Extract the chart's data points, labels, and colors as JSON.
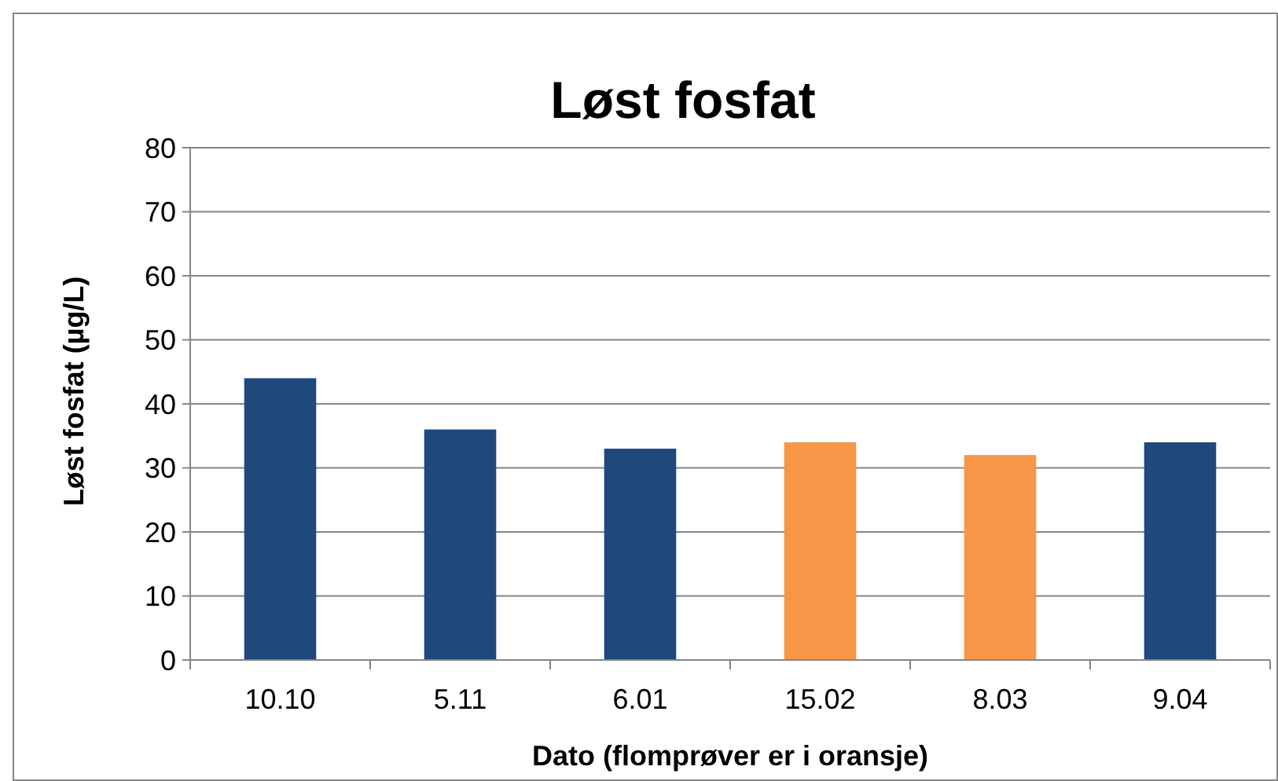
{
  "chart_data": {
    "type": "bar",
    "title": "Løst fosfat",
    "xlabel": "Dato (flomprøver er i oransje)",
    "ylabel": "Løst fosfat (µg/L)",
    "categories": [
      "10.10",
      "5.11",
      "6.01",
      "15.02",
      "8.03",
      "9.04"
    ],
    "values": [
      44,
      36,
      33,
      34,
      32,
      34
    ],
    "colors": [
      "#1f497d",
      "#1f497d",
      "#1f497d",
      "#f79646",
      "#f79646",
      "#1f497d"
    ],
    "ylim": [
      0,
      80
    ],
    "yticks": [
      0,
      10,
      20,
      30,
      40,
      50,
      60,
      70,
      80
    ],
    "grid": "y"
  }
}
